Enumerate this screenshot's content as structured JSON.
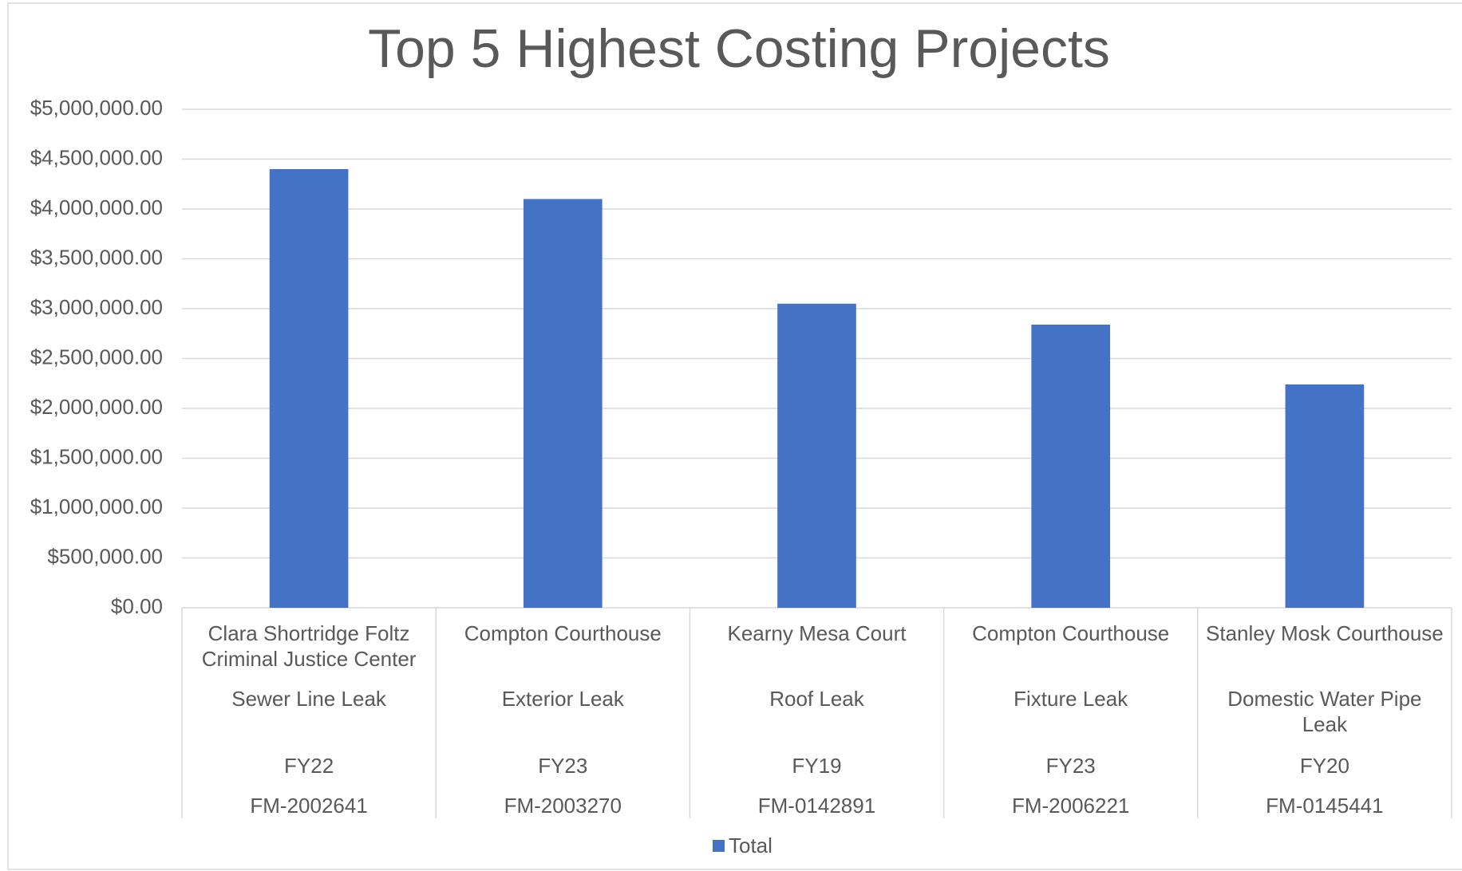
{
  "chart_data": {
    "type": "bar",
    "title": "Top 5 Highest Costing Projects",
    "categories": [
      [
        "Clara Shortridge Foltz Criminal Justice Center",
        "Sewer Line Leak",
        "FY22",
        "FM-2002641"
      ],
      [
        "Compton Courthouse",
        "Exterior Leak",
        "FY23",
        "FM-2003270"
      ],
      [
        "Kearny Mesa Court",
        "Roof Leak",
        "FY19",
        "FM-0142891"
      ],
      [
        "Compton Courthouse",
        "Fixture Leak",
        "FY23",
        "FM-2006221"
      ],
      [
        "Stanley Mosk Courthouse",
        "Domestic Water Pipe Leak",
        "FY20",
        "FM-0145441"
      ]
    ],
    "series": [
      {
        "name": "Total",
        "color": "#4472c4",
        "values": [
          4400000,
          4100000,
          3050000,
          2840000,
          2240000
        ]
      }
    ],
    "ylim": [
      0,
      5000000
    ],
    "yticks": [
      {
        "value": 0,
        "label": "$0.00"
      },
      {
        "value": 500000,
        "label": "$500,000.00"
      },
      {
        "value": 1000000,
        "label": "$1,000,000.00"
      },
      {
        "value": 1500000,
        "label": "$1,500,000.00"
      },
      {
        "value": 2000000,
        "label": "$2,000,000.00"
      },
      {
        "value": 2500000,
        "label": "$2,500,000.00"
      },
      {
        "value": 3000000,
        "label": "$3,000,000.00"
      },
      {
        "value": 3500000,
        "label": "$3,500,000.00"
      },
      {
        "value": 4000000,
        "label": "$4,000,000.00"
      },
      {
        "value": 4500000,
        "label": "$4,500,000.00"
      },
      {
        "value": 5000000,
        "label": "$5,000,000.00"
      }
    ],
    "grid": true,
    "legend": "bottom"
  }
}
